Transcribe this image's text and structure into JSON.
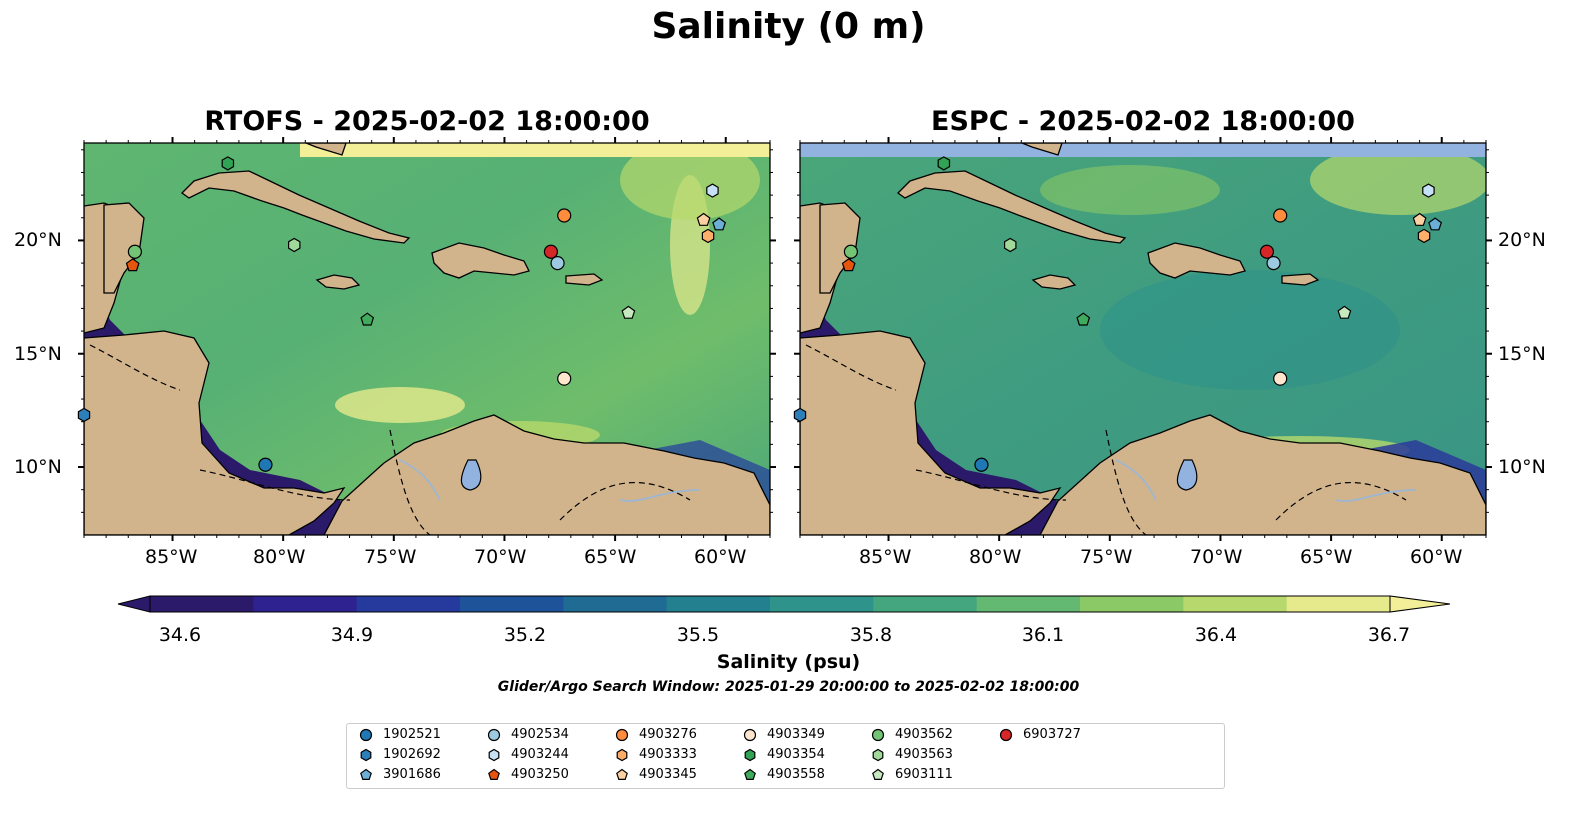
{
  "figure": {
    "title": "Salinity (0 m)",
    "panels": [
      {
        "title": "RTOFS - 2025-02-02 18:00:00",
        "model": "RTOFS"
      },
      {
        "title": "ESPC - 2025-02-02 18:00:00",
        "model": "ESPC"
      }
    ],
    "lon_labels": [
      "85°W",
      "80°W",
      "75°W",
      "70°W",
      "65°W",
      "60°W"
    ],
    "lat_labels": [
      "20°N",
      "15°N",
      "10°N"
    ],
    "colorbar": {
      "ticks": [
        "34.6",
        "34.9",
        "35.2",
        "35.5",
        "35.8",
        "36.1",
        "36.4",
        "36.7"
      ],
      "label": "Salinity (psu)",
      "colors": [
        "#2b1a6a",
        "#2d2290",
        "#263a9e",
        "#1f5399",
        "#1f6b94",
        "#23808f",
        "#2e938a",
        "#44a67f",
        "#63b872",
        "#8bc866",
        "#b7d86c",
        "#e6ea8c"
      ]
    },
    "search_window": "Glider/Argo Search Window: 2025-01-29 20:00:00 to 2025-02-02 18:00:00"
  },
  "legend": [
    {
      "id": "1902521",
      "marker": "circle",
      "color": "#1f77b4"
    },
    {
      "id": "1902692",
      "marker": "hexagon",
      "color": "#2c7fb8"
    },
    {
      "id": "3901686",
      "marker": "pentagon",
      "color": "#6baed6"
    },
    {
      "id": "4902534",
      "marker": "circle",
      "color": "#9ecae1"
    },
    {
      "id": "4903244",
      "marker": "hexagon",
      "color": "#c6e0f5"
    },
    {
      "id": "4903250",
      "marker": "pentagon",
      "color": "#e6550d"
    },
    {
      "id": "4903276",
      "marker": "circle",
      "color": "#fd8d3c"
    },
    {
      "id": "4903333",
      "marker": "hexagon",
      "color": "#fdae6b"
    },
    {
      "id": "4903345",
      "marker": "pentagon",
      "color": "#fdd0a2"
    },
    {
      "id": "4903349",
      "marker": "circle",
      "color": "#fee6ce"
    },
    {
      "id": "4903354",
      "marker": "hexagon",
      "color": "#31a354"
    },
    {
      "id": "4903558",
      "marker": "pentagon",
      "color": "#41ab5d"
    },
    {
      "id": "4903562",
      "marker": "circle",
      "color": "#74c476"
    },
    {
      "id": "4903563",
      "marker": "hexagon",
      "color": "#a1d99b"
    },
    {
      "id": "6903111",
      "marker": "pentagon",
      "color": "#c7e9c0"
    },
    {
      "id": "6903727",
      "marker": "circle",
      "color": "#d62728"
    }
  ],
  "floats": [
    {
      "id": "1902521",
      "lon": -80.8,
      "lat": 10.1
    },
    {
      "id": "1902692",
      "lon": -89.0,
      "lat": 12.3
    },
    {
      "id": "3901686",
      "lon": -60.3,
      "lat": 20.7
    },
    {
      "id": "4902534",
      "lon": -67.6,
      "lat": 19.0
    },
    {
      "id": "4903244",
      "lon": -60.6,
      "lat": 22.2
    },
    {
      "id": "4903250",
      "lon": -86.8,
      "lat": 18.9
    },
    {
      "id": "4903276",
      "lon": -67.3,
      "lat": 21.1
    },
    {
      "id": "4903333",
      "lon": -60.8,
      "lat": 20.2
    },
    {
      "id": "4903345",
      "lon": -61.0,
      "lat": 20.9
    },
    {
      "id": "4903349",
      "lon": -67.3,
      "lat": 13.9
    },
    {
      "id": "4903354",
      "lon": -82.5,
      "lat": 23.4
    },
    {
      "id": "4903558",
      "lon": -76.2,
      "lat": 16.5
    },
    {
      "id": "4903562",
      "lon": -86.7,
      "lat": 19.5
    },
    {
      "id": "4903563",
      "lon": -79.5,
      "lat": 19.8
    },
    {
      "id": "6903111",
      "lon": -64.4,
      "lat": 16.8
    },
    {
      "id": "6903727",
      "lon": -67.9,
      "lat": 19.5
    }
  ]
}
